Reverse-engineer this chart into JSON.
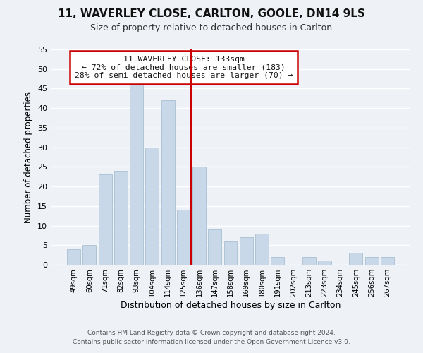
{
  "title": "11, WAVERLEY CLOSE, CARLTON, GOOLE, DN14 9LS",
  "subtitle": "Size of property relative to detached houses in Carlton",
  "xlabel": "Distribution of detached houses by size in Carlton",
  "ylabel": "Number of detached properties",
  "bar_labels": [
    "49sqm",
    "60sqm",
    "71sqm",
    "82sqm",
    "93sqm",
    "104sqm",
    "114sqm",
    "125sqm",
    "136sqm",
    "147sqm",
    "158sqm",
    "169sqm",
    "180sqm",
    "191sqm",
    "202sqm",
    "213sqm",
    "223sqm",
    "234sqm",
    "245sqm",
    "256sqm",
    "267sqm"
  ],
  "bar_values": [
    4,
    5,
    23,
    24,
    46,
    30,
    42,
    14,
    25,
    9,
    6,
    7,
    8,
    2,
    0,
    2,
    1,
    0,
    3,
    2,
    2
  ],
  "bar_color": "#c8d8e8",
  "bar_edge_color": "#a8bfd0",
  "vline_x": 7.5,
  "vline_color": "#cc0000",
  "ylim": [
    0,
    55
  ],
  "yticks": [
    0,
    5,
    10,
    15,
    20,
    25,
    30,
    35,
    40,
    45,
    50,
    55
  ],
  "annotation_title": "11 WAVERLEY CLOSE: 133sqm",
  "annotation_line1": "← 72% of detached houses are smaller (183)",
  "annotation_line2": "28% of semi-detached houses are larger (70) →",
  "annotation_box_color": "#ffffff",
  "annotation_box_edge": "#cc0000",
  "footer1": "Contains HM Land Registry data © Crown copyright and database right 2024.",
  "footer2": "Contains public sector information licensed under the Open Government Licence v3.0.",
  "background_color": "#eef2f7"
}
